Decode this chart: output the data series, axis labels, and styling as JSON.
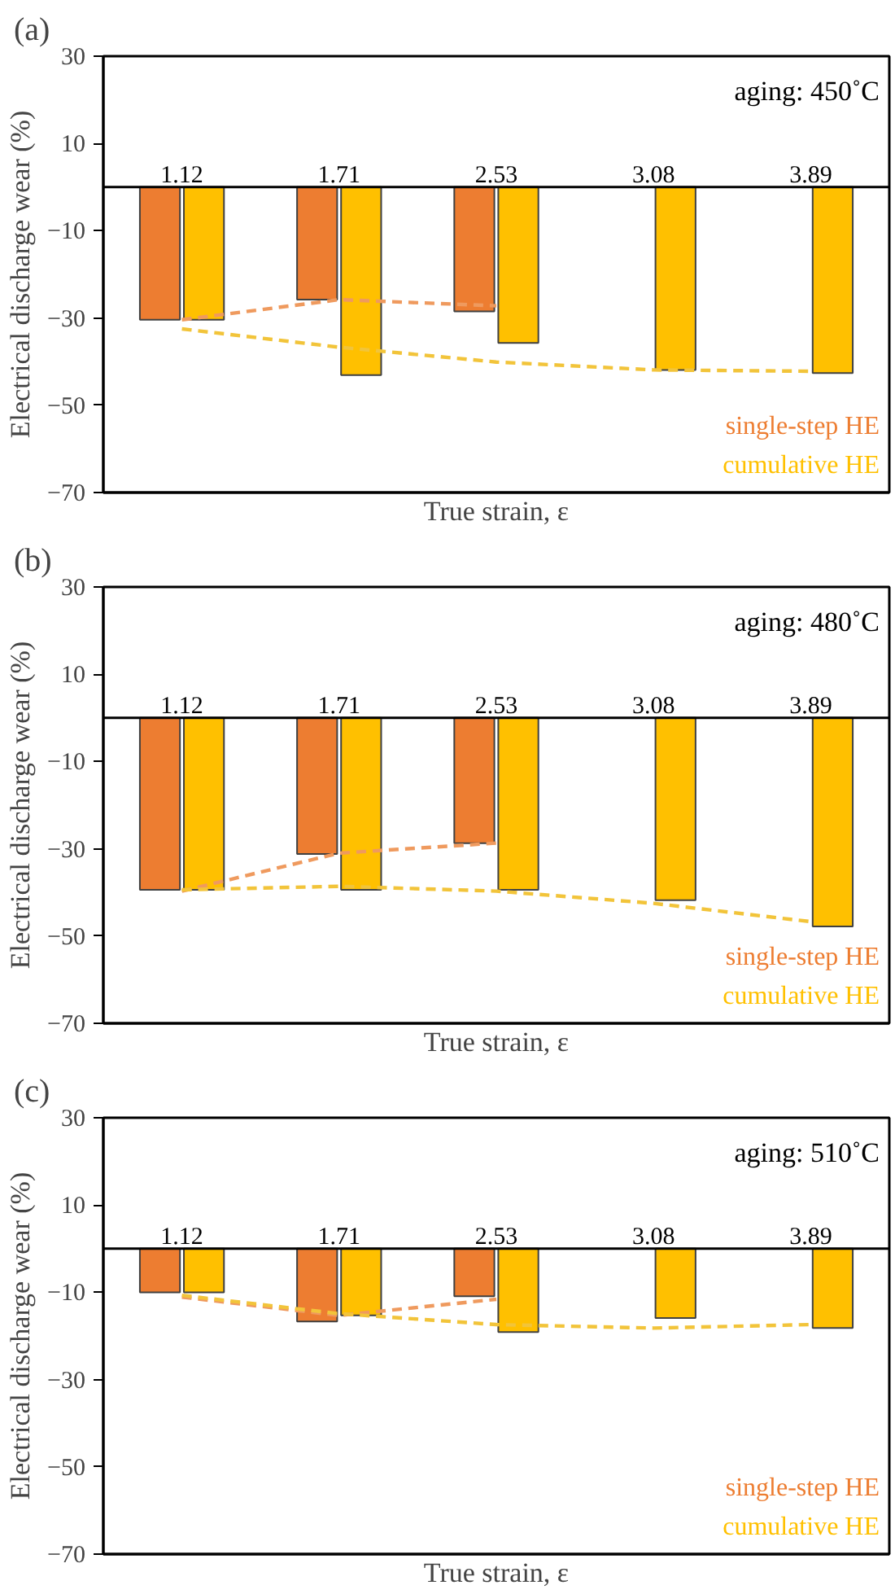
{
  "chart_data": [
    {
      "type": "bar",
      "title": "(a)",
      "xlabel": "True strain, ε",
      "ylabel": "Electrical discharge wear (%)",
      "annotations": [
        "aging: 450˚C"
      ],
      "categories": [
        "1.12",
        "1.71",
        "2.53",
        "3.08",
        "3.89"
      ],
      "ylim": [
        -70,
        30
      ],
      "yticks": [
        -70,
        -50,
        -30,
        -10,
        10,
        30
      ],
      "legend": "bottom right",
      "series": [
        {
          "name": "single-step HE",
          "color": "#ed7d31",
          "values": [
            -30.4,
            -25.8,
            -28.5,
            null,
            null
          ]
        },
        {
          "name": "cumulative HE",
          "color": "#ffc000",
          "values": [
            -30.4,
            -43.1,
            -35.7,
            -41.9,
            -42.6
          ]
        },
        {
          "type": "line",
          "line_style": "dashed",
          "color": "#ef9a5e",
          "values": [
            -30.4,
            -25.8,
            -27.2,
            null,
            null
          ]
        },
        {
          "type": "line",
          "line_style": "dashed",
          "color": "#f2c43a",
          "values": [
            -32.5,
            -36.7,
            -40.1,
            -41.9,
            -42.2
          ]
        }
      ]
    },
    {
      "type": "bar",
      "title": "(b)",
      "xlabel": "True strain, ε",
      "ylabel": "Electrical discharge wear (%)",
      "annotations": [
        "aging: 480˚C"
      ],
      "categories": [
        "1.12",
        "1.71",
        "2.53",
        "3.08",
        "3.89"
      ],
      "ylim": [
        -70,
        30
      ],
      "yticks": [
        -70,
        -50,
        -30,
        -10,
        10,
        30
      ],
      "legend": "bottom right",
      "series": [
        {
          "name": "single-step HE",
          "color": "#ed7d31",
          "values": [
            -39.4,
            -31.2,
            -28.7,
            null,
            null
          ]
        },
        {
          "name": "cumulative HE",
          "color": "#ffc000",
          "values": [
            -39.4,
            -39.4,
            -39.4,
            -41.8,
            -47.8
          ]
        },
        {
          "type": "line",
          "line_style": "dashed",
          "color": "#ef9a5e",
          "values": [
            -39.7,
            -31.0,
            -28.7,
            null,
            null
          ]
        },
        {
          "type": "line",
          "line_style": "dashed",
          "color": "#f2c43a",
          "values": [
            -39.4,
            -38.6,
            -39.7,
            -42.5,
            -46.7
          ]
        }
      ]
    },
    {
      "type": "bar",
      "title": "(c)",
      "xlabel": "True strain, ε",
      "ylabel": "Electrical discharge wear (%)",
      "annotations": [
        "aging: 510˚C"
      ],
      "categories": [
        "1.12",
        "1.71",
        "2.53",
        "3.08",
        "3.89"
      ],
      "ylim": [
        -70,
        30
      ],
      "yticks": [
        -70,
        -50,
        -30,
        -10,
        10,
        30
      ],
      "legend": "bottom right",
      "series": [
        {
          "name": "single-step HE",
          "color": "#ed7d31",
          "values": [
            -10.0,
            -16.7,
            -10.9,
            null,
            null
          ]
        },
        {
          "name": "cumulative HE",
          "color": "#ffc000",
          "values": [
            -10.0,
            -15.3,
            -19.1,
            -15.9,
            -18.2
          ]
        },
        {
          "type": "line",
          "line_style": "dashed",
          "color": "#ef9a5e",
          "values": [
            -11.1,
            -15.3,
            -11.6,
            null,
            null
          ]
        },
        {
          "type": "line",
          "line_style": "dashed",
          "color": "#f2c43a",
          "values": [
            -10.7,
            -14.9,
            -17.4,
            -18.2,
            -17.4
          ]
        }
      ]
    }
  ]
}
